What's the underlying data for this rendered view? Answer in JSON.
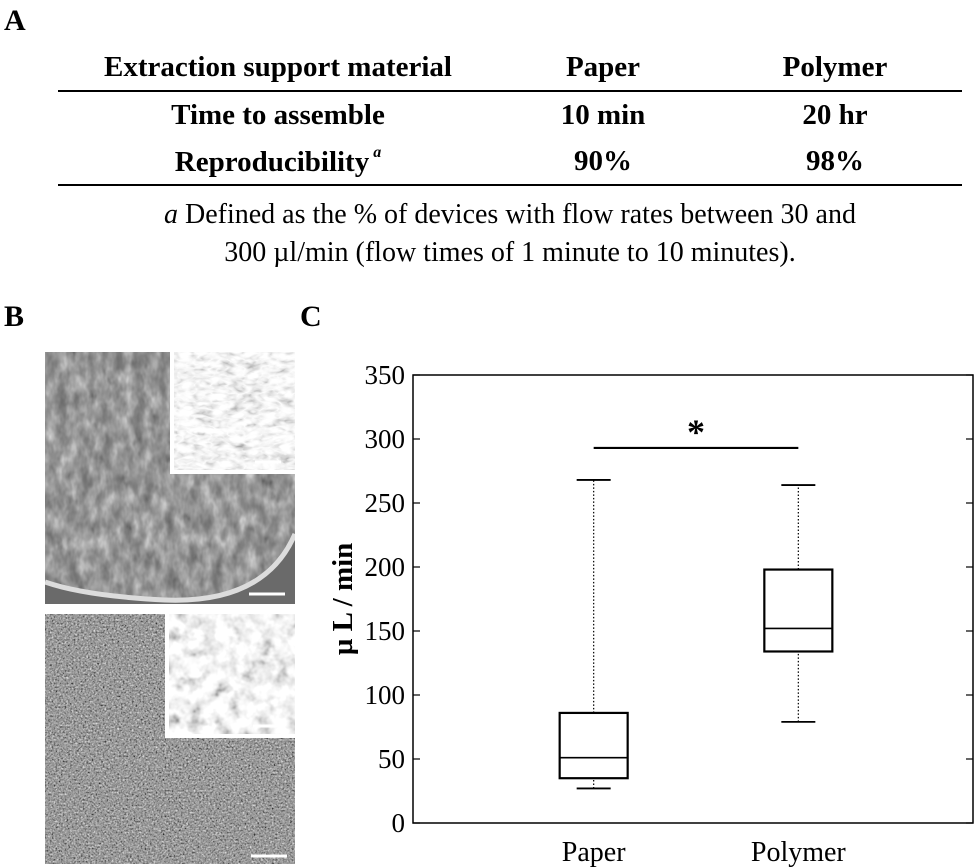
{
  "panels": {
    "a": "A",
    "b": "B",
    "c": "C"
  },
  "table": {
    "headers": [
      "Extraction support material",
      "Paper",
      "Polymer"
    ],
    "rows": [
      {
        "label": "Time to assemble",
        "sup": "",
        "paper": "10 min",
        "polymer": "20 hr"
      },
      {
        "label": "Reproducibility",
        "sup": "a",
        "paper": "90%",
        "polymer": "98%"
      }
    ],
    "footnote_mark": "a",
    "footnote_line1": "Defined as the % of devices with flow rates between 30 and",
    "footnote_line2": "300 µl/min (flow times of 1 minute to 10 minutes)."
  },
  "images": {
    "paper_sem": "sem-paper-image",
    "polymer_sem": "sem-polymer-image"
  },
  "chart_data": {
    "type": "boxplot",
    "categories": [
      "Paper",
      "Polymer"
    ],
    "ylabel": "µ L / min",
    "ylim": [
      0,
      350
    ],
    "yticks": [
      0,
      50,
      100,
      150,
      200,
      250,
      300,
      350
    ],
    "boxes": [
      {
        "name": "Paper",
        "whisker_low": 27,
        "q1": 35,
        "median": 51,
        "q3": 86,
        "whisker_high": 268
      },
      {
        "name": "Polymer",
        "whisker_low": 79,
        "q1": 134,
        "median": 152,
        "q3": 198,
        "whisker_high": 264
      }
    ],
    "significance": {
      "from": "Paper",
      "to": "Polymer",
      "level": 293,
      "label": "*"
    },
    "grid": false
  }
}
